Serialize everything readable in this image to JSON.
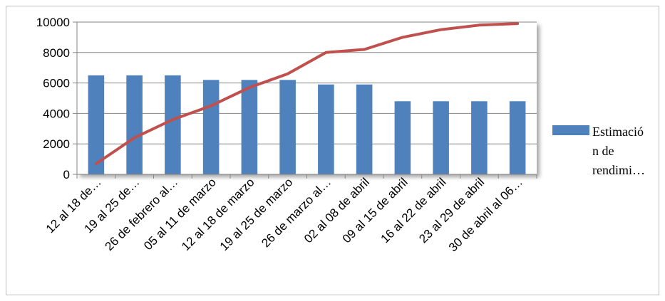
{
  "chart_data": {
    "type": "bar",
    "categories": [
      "12 al 18 de…",
      "19 al 25 de…",
      "26  de febrero al…",
      "05 al 11 de marzo",
      "12 al 18 de marzo",
      "19 al 25 de marzo",
      "26 de marzo al…",
      "02 al 08 de abril",
      "09 al 15 de abril",
      "16 al 22 de abril",
      "23 al 29 de abril",
      "30 de abril al 06…"
    ],
    "series": [
      {
        "name": "Estimación de rendimi…",
        "kind": "bar",
        "color": "#4f81bd",
        "values": [
          6500,
          6500,
          6500,
          6200,
          6200,
          6200,
          5900,
          5900,
          4800,
          4800,
          4800,
          4800
        ]
      },
      {
        "kind": "line",
        "color": "#c0504d",
        "values": [
          700,
          2400,
          3600,
          4500,
          5700,
          6600,
          8000,
          8200,
          9000,
          9500,
          9800,
          9900
        ]
      }
    ],
    "yticks": [
      0,
      2000,
      4000,
      6000,
      8000,
      10000
    ],
    "ylim": [
      0,
      10000
    ],
    "grid": true,
    "legend_position": "right",
    "legend_lines": [
      "Estimació",
      "n de",
      "rendimi…"
    ]
  }
}
